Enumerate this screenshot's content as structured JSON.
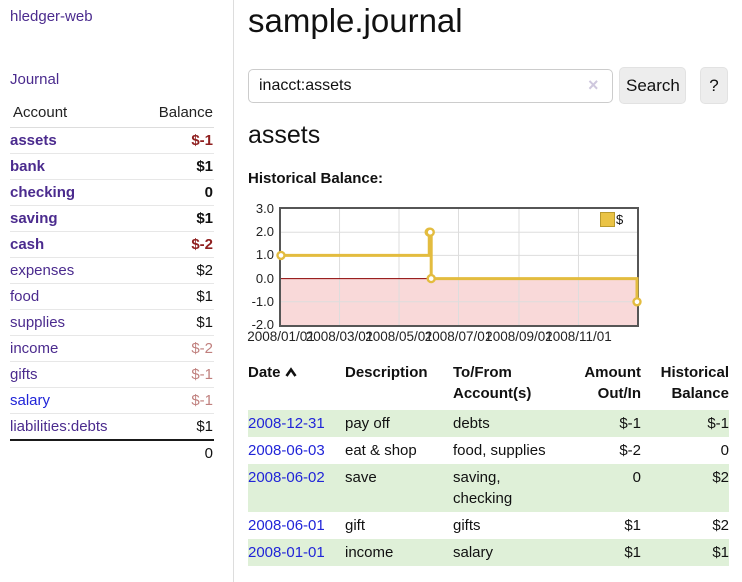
{
  "app": {
    "brand": "hledger-web",
    "nav_journal": "Journal"
  },
  "sidebar": {
    "col_account": "Account",
    "col_balance": "Balance",
    "accounts": [
      {
        "name": "assets",
        "balance": "$-1"
      },
      {
        "name": "bank",
        "balance": "$1"
      },
      {
        "name": "checking",
        "balance": "0"
      },
      {
        "name": "saving",
        "balance": "$1"
      },
      {
        "name": "cash",
        "balance": "$-2"
      },
      {
        "name": "expenses",
        "balance": "$2"
      },
      {
        "name": "food",
        "balance": "$1"
      },
      {
        "name": "supplies",
        "balance": "$1"
      },
      {
        "name": "income",
        "balance": "$-2"
      },
      {
        "name": "gifts",
        "balance": "$-1"
      },
      {
        "name": "salary",
        "balance": "$-1"
      },
      {
        "name": "liabilities:debts",
        "balance": "$1"
      }
    ],
    "total": "0"
  },
  "header": {
    "title": "sample.journal"
  },
  "search": {
    "value": "inacct:assets",
    "clear_label": "×",
    "button_label": "Search",
    "help_label": "?"
  },
  "page": {
    "heading": "assets",
    "chart_caption": "Historical Balance:"
  },
  "chart_data": {
    "type": "line",
    "subtype": "step-after",
    "title": "Historical Balance",
    "legend": "$",
    "legend_position": "top-right",
    "grid": true,
    "ylim": [
      -2,
      3
    ],
    "y_ticks": [
      "3.0",
      "2.0",
      "1.0",
      "0.0",
      "-1.0",
      "-2.0"
    ],
    "x_range": [
      "2008-01-01",
      "2008-12-31"
    ],
    "x_tick_dates": [
      "2008-01-01",
      "2008-03-01",
      "2008-05-01",
      "2008-07-01",
      "2008-09-01",
      "2008-11-01"
    ],
    "x_ticks": [
      "2008/01/01",
      "2008/03/01",
      "2008/05/01",
      "2008/07/01",
      "2008/09/01",
      "2008/11/01"
    ],
    "points": [
      {
        "date": "2008-01-01",
        "value": 1
      },
      {
        "date": "2008-06-01",
        "value": 2
      },
      {
        "date": "2008-06-02",
        "value": 2
      },
      {
        "date": "2008-06-03",
        "value": 0
      },
      {
        "date": "2008-12-31",
        "value": -1
      }
    ],
    "colors": {
      "series": "#e3bc3f",
      "marker_fill": "#ffffff",
      "negative_fill": "#f9d9d9",
      "zero_line": "#8b0000",
      "gridline": "#dddddd",
      "border": "#565656"
    }
  },
  "register": {
    "headers": {
      "date": "Date",
      "description": "Description",
      "tofrom": "To/From Account(s)",
      "amount": "Amount Out/In",
      "balance": "Historical Balance"
    },
    "rows": [
      {
        "date": "2008-12-31",
        "description": "pay off",
        "accounts": "debts",
        "amount": "$-1",
        "balance": "$-1"
      },
      {
        "date": "2008-06-03",
        "description": "eat & shop",
        "accounts": "food, supplies",
        "amount": "$-2",
        "balance": "0"
      },
      {
        "date": "2008-06-02",
        "description": "save",
        "accounts": "saving, checking",
        "amount": "0",
        "balance": "$2"
      },
      {
        "date": "2008-06-01",
        "description": "gift",
        "accounts": "gifts",
        "amount": "$1",
        "balance": "$2"
      },
      {
        "date": "2008-01-01",
        "description": "income",
        "accounts": "salary",
        "amount": "$1",
        "balance": "$1"
      }
    ]
  },
  "colors": {
    "link_purple": "#4b2b8e",
    "link_blue": "#2125d8",
    "negative_strong": "#8f1f1f",
    "negative_muted": "#c0807e",
    "row_stripe_green": "#dff0d8"
  }
}
